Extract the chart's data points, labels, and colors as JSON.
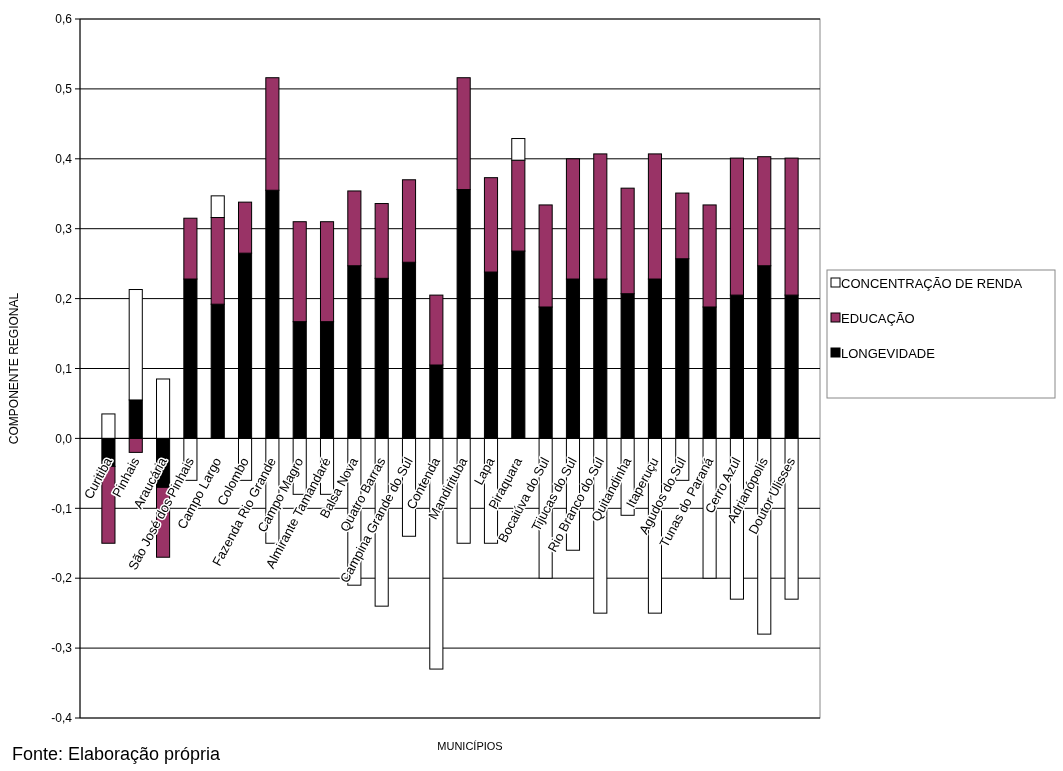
{
  "chart_data": {
    "type": "bar",
    "stacked": true,
    "xlabel": "MUNICÍPIOS",
    "ylabel": "COMPONENTE REGIONAL",
    "annotations": [
      "Fonte: Elaboração própria"
    ],
    "categories": [
      "Curitiba",
      "Pinhais",
      "Araucária",
      "São José dos Pinhais",
      "Campo Largo",
      "Colombo",
      "Fazenda Rio Grande",
      "Campo Magro",
      "Almirante Tamandaré",
      "Balsa Nova",
      "Quatro Barras",
      "Campina Grande do Sul",
      "Contenda",
      "Mandirituba",
      "Lapa",
      "Piraquara",
      "Bocaiúva do Sul",
      "Tijucas do Sul",
      "Rio Branco do Sul",
      "Quitandinha",
      "Itaperuçu",
      "Agudos do Sul",
      "Tunas do Paraná",
      "Cerro Azul",
      "Adrianópolis",
      "Doutor Ulisses"
    ],
    "series": [
      {
        "name": "LONGEVIDADE",
        "color": "#000000",
        "values": [
          -0.04,
          0.055,
          -0.07,
          0.228,
          0.192,
          0.265,
          0.355,
          0.167,
          0.167,
          0.247,
          0.229,
          0.252,
          0.105,
          0.356,
          0.238,
          0.268,
          0.188,
          0.228,
          0.228,
          0.207,
          0.228,
          0.257,
          0.188,
          0.205,
          0.247,
          0.205
        ]
      },
      {
        "name": "EDUCAÇÃO",
        "color": "#993366",
        "values": [
          -0.11,
          -0.02,
          -0.1,
          0.087,
          0.124,
          0.073,
          0.161,
          0.143,
          0.143,
          0.107,
          0.107,
          0.118,
          0.1,
          0.16,
          0.135,
          0.13,
          0.146,
          0.172,
          0.179,
          0.151,
          0.179,
          0.094,
          0.146,
          0.196,
          0.156,
          0.196
        ]
      },
      {
        "name": "CONCENTRAÇÃO DE RENDA",
        "color": "#ffffff",
        "values": [
          0.035,
          0.158,
          0.085,
          -0.06,
          0.031,
          -0.06,
          -0.15,
          -0.08,
          -0.08,
          -0.21,
          -0.24,
          -0.14,
          -0.33,
          -0.15,
          -0.15,
          0.031,
          -0.2,
          -0.16,
          -0.25,
          -0.11,
          -0.25,
          -0.06,
          -0.2,
          -0.23,
          -0.28,
          -0.23
        ]
      }
    ],
    "ylim": [
      -0.4,
      0.6
    ],
    "yticks": [
      {
        "value": -0.4,
        "label": "-0,4"
      },
      {
        "value": -0.3,
        "label": "-0,3"
      },
      {
        "value": -0.2,
        "label": "-0,2"
      },
      {
        "value": -0.1,
        "label": "-0,1"
      },
      {
        "value": 0,
        "label": "0,0"
      },
      {
        "value": 0.1,
        "label": "0,1"
      },
      {
        "value": 0.2,
        "label": "0,2"
      },
      {
        "value": 0.3,
        "label": "0,3"
      },
      {
        "value": 0.4,
        "label": "0,4"
      },
      {
        "value": 0.5,
        "label": "0,5"
      },
      {
        "value": 0.6,
        "label": "0,6"
      }
    ],
    "grid": "y",
    "legend": "right"
  }
}
